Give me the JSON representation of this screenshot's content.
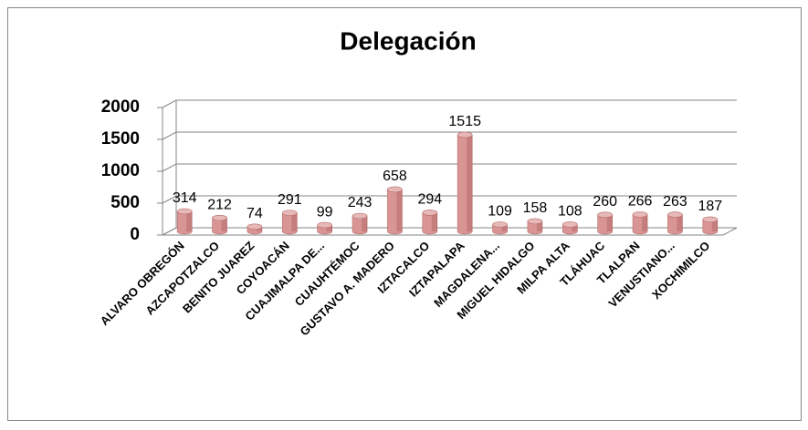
{
  "chart_data": {
    "type": "bar",
    "title": "Delegación",
    "categories": [
      "ALVARO OBREGÓN",
      "AZCAPOTZALCO",
      "BENITO JUAREZ",
      "COYOACÁN",
      "CUAJIMALPA DE...",
      "CUAUHTÉMOC",
      "GUSTAVO A. MADERO",
      "IZTACALCO",
      "IZTAPALAPA",
      "MAGDALENA...",
      "MIGUEL HIDALGO",
      "MILPA ALTA",
      "TLÁHUAC",
      "TLALPAN",
      "VENUSTIANO...",
      "XOCHIMILCO"
    ],
    "values": [
      314,
      212,
      74,
      291,
      99,
      243,
      658,
      294,
      1515,
      109,
      158,
      108,
      260,
      266,
      263,
      187
    ],
    "color": "#d99594",
    "ylim": [
      0,
      2000
    ],
    "yticks": [
      0,
      500,
      1000,
      1500,
      2000
    ],
    "grid": true
  }
}
